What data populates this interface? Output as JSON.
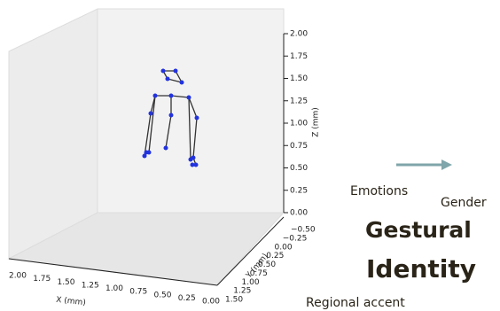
{
  "plot": {
    "x_label": "X (mm)",
    "y_label": "Y (mm)",
    "z_label": "Z (mm)",
    "x_ticks": [
      "2.00",
      "1.75",
      "1.50",
      "1.25",
      "1.00",
      "0.75",
      "0.50",
      "0.25",
      "0.00"
    ],
    "y_ticks": [
      "1.50",
      "1.25",
      "1.00",
      "0.75",
      "0.50",
      "0.25",
      "0.00",
      "−0.25",
      "−0.50"
    ],
    "z_ticks": [
      "0.00",
      "0.25",
      "0.50",
      "0.75",
      "1.00",
      "1.25",
      "1.50",
      "1.75",
      "2.00"
    ]
  },
  "words": {
    "emotions": "Emotions",
    "gender": "Gender",
    "gestural": "Gestural",
    "identity": "Identity",
    "regional": "Regional accent"
  }
}
